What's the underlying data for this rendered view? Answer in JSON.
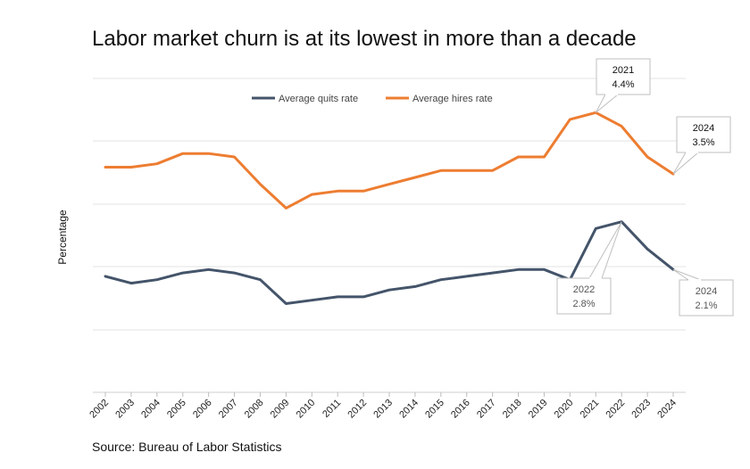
{
  "title": "Labor market churn is at its lowest in more than a decade",
  "source": "Source: Bureau of Labor Statistics",
  "chart_data": {
    "type": "line",
    "title": "Labor market churn is at its lowest in more than a decade",
    "xlabel": "",
    "ylabel": "Percentage",
    "x": [
      "2002",
      "2003",
      "2004",
      "2005",
      "2006",
      "2007",
      "2008",
      "2009",
      "2010",
      "2011",
      "2012",
      "2013",
      "2014",
      "2015",
      "2016",
      "2017",
      "2018",
      "2019",
      "2020",
      "2021",
      "2022",
      "2023",
      "2024"
    ],
    "series": [
      {
        "name": "Average quits rate",
        "color": "#44546A",
        "values": [
          2.0,
          1.9,
          1.95,
          2.05,
          2.1,
          2.05,
          1.95,
          1.6,
          1.65,
          1.7,
          1.7,
          1.8,
          1.85,
          1.95,
          2.0,
          2.05,
          2.1,
          2.1,
          1.95,
          2.7,
          2.8,
          2.4,
          2.1
        ]
      },
      {
        "name": "Average hires rate",
        "color": "#ED7D31",
        "values": [
          3.6,
          3.6,
          3.65,
          3.8,
          3.8,
          3.75,
          3.35,
          3.0,
          3.2,
          3.25,
          3.25,
          3.35,
          3.45,
          3.55,
          3.55,
          3.55,
          3.75,
          3.75,
          4.3,
          4.4,
          4.2,
          3.75,
          3.5
        ]
      }
    ],
    "ylim": [
      0.3,
      4.9
    ],
    "grid": true,
    "legend": "top-center",
    "annotations": [
      {
        "series": "Average hires rate",
        "x": "2021",
        "year": "2021",
        "label": "4.4%"
      },
      {
        "series": "Average hires rate",
        "x": "2024",
        "year": "2024",
        "label": "3.5%"
      },
      {
        "series": "Average quits rate",
        "x": "2022",
        "year": "2022",
        "label": "2.8%"
      },
      {
        "series": "Average quits rate",
        "x": "2024",
        "year": "2024",
        "label": "2.1%"
      }
    ]
  }
}
